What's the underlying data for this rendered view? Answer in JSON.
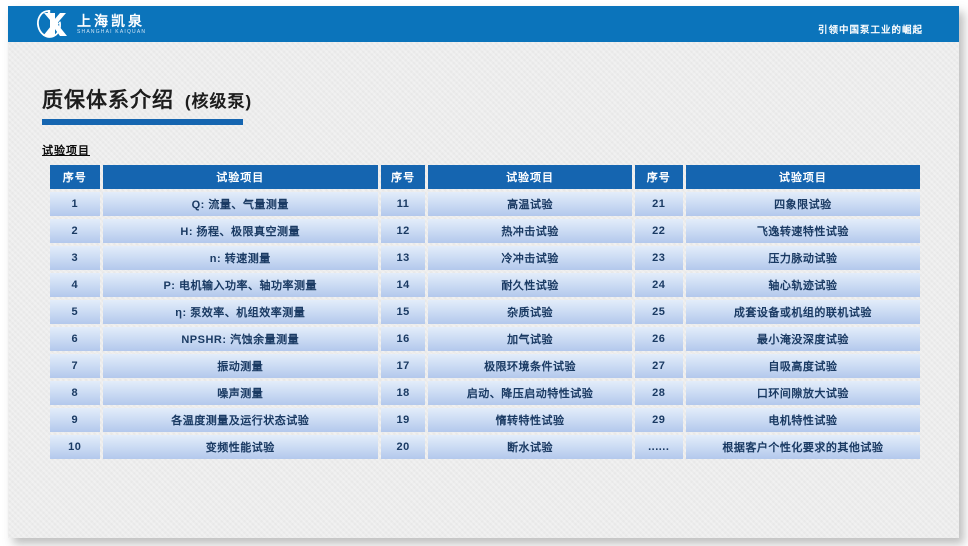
{
  "topbar": {
    "logo": {
      "text": "上海凯泉",
      "subtext": "SHANGHAI KAIQUAN"
    },
    "slogan": "引领中国泵工业的崛起"
  },
  "page": {
    "title": "质保体系介绍",
    "title_suffix": "(核级泵)",
    "section_label": "试验项目"
  },
  "table": {
    "headers": [
      "序号",
      "试验项目",
      "序号",
      "试验项目",
      "序号",
      "试验项目"
    ],
    "rows": [
      [
        "1",
        "Q: 流量、气量测量",
        "11",
        "高温试验",
        "21",
        "四象限试验"
      ],
      [
        "2",
        "H: 扬程、极限真空测量",
        "12",
        "热冲击试验",
        "22",
        "飞逸转速特性试验"
      ],
      [
        "3",
        "n: 转速测量",
        "13",
        "冷冲击试验",
        "23",
        "压力脉动试验"
      ],
      [
        "4",
        "P: 电机输入功率、轴功率测量",
        "14",
        "耐久性试验",
        "24",
        "轴心轨迹试验"
      ],
      [
        "5",
        "η: 泵效率、机组效率测量",
        "15",
        "杂质试验",
        "25",
        "成套设备或机组的联机试验"
      ],
      [
        "6",
        "NPSHR: 汽蚀余量测量",
        "16",
        "加气试验",
        "26",
        "最小淹没深度试验"
      ],
      [
        "7",
        "振动测量",
        "17",
        "极限环境条件试验",
        "27",
        "自吸高度试验"
      ],
      [
        "8",
        "噪声测量",
        "18",
        "启动、降压启动特性试验",
        "28",
        "口环间隙放大试验"
      ],
      [
        "9",
        "各温度测量及运行状态试验",
        "19",
        "惰转特性试验",
        "29",
        "电机特性试验"
      ],
      [
        "10",
        "变频性能试验",
        "20",
        "断水试验",
        "......",
        "根据客户个性化要求的其他试验"
      ]
    ]
  },
  "colors": {
    "top_bar": "#0b74bb",
    "table_header": "#1565b0",
    "underline": "#1565b0",
    "row_gradient_top": "#e3edfa",
    "row_gradient_bottom": "#b3c8ec",
    "cell_text": "#1a3a63",
    "slide_bg": "#ececec"
  }
}
